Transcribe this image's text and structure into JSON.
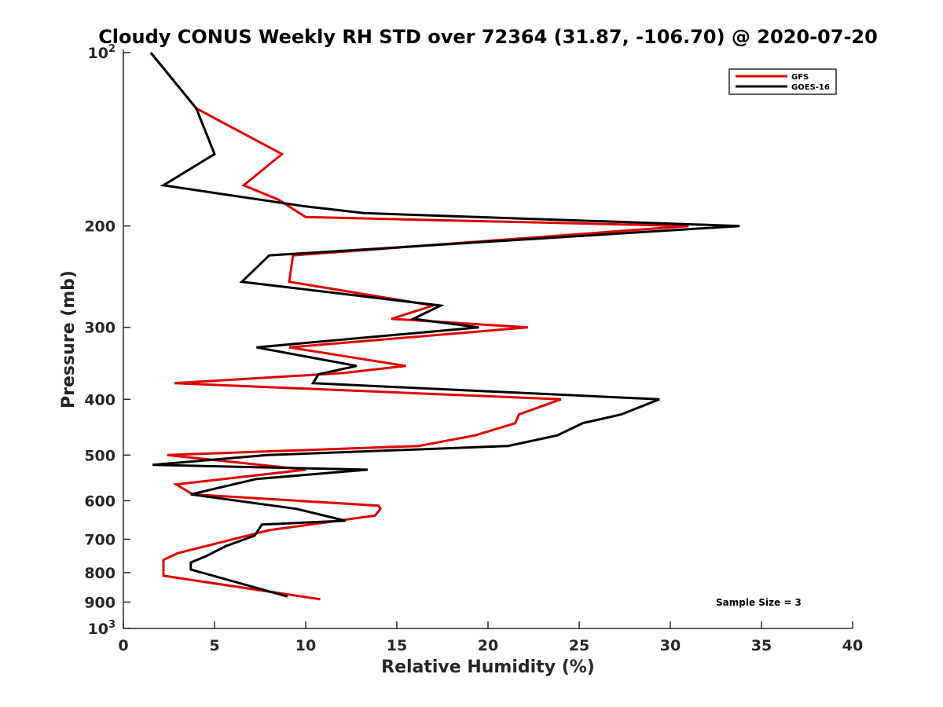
{
  "chart_data": {
    "type": "line",
    "title": "Cloudy CONUS Weekly RH STD over 72364 (31.87, -106.70) @ 2020-07-20",
    "xlabel": "Relative Humidity (%)",
    "ylabel": "Pressure (mb)",
    "xlim": [
      0,
      40
    ],
    "ylim": [
      100,
      1000
    ],
    "y_scale": "log",
    "y_reversed": true,
    "grid": false,
    "legend_position": "top-right",
    "x_ticks": [
      "0",
      "5",
      "10",
      "15",
      "20",
      "25",
      "30",
      "35",
      "40"
    ],
    "y_ticks": [
      {
        "value": 100,
        "base": "10",
        "exp": "2"
      },
      {
        "value": 200,
        "label": "200"
      },
      {
        "value": 300,
        "label": "300"
      },
      {
        "value": 400,
        "label": "400"
      },
      {
        "value": 500,
        "label": "500"
      },
      {
        "value": 600,
        "label": "600"
      },
      {
        "value": 700,
        "label": "700"
      },
      {
        "value": 800,
        "label": "800"
      },
      {
        "value": 900,
        "label": "900"
      },
      {
        "value": 1000,
        "base": "10",
        "exp": "3"
      }
    ],
    "series": [
      {
        "name": "GFS",
        "color": "#e00000",
        "points": [
          {
            "x": 1.5,
            "y": 100
          },
          {
            "x": 4.0,
            "y": 125
          },
          {
            "x": 8.7,
            "y": 150
          },
          {
            "x": 6.6,
            "y": 170
          },
          {
            "x": 8.5,
            "y": 180
          },
          {
            "x": 10.0,
            "y": 193
          },
          {
            "x": 31.0,
            "y": 200
          },
          {
            "x": 9.3,
            "y": 225
          },
          {
            "x": 9.1,
            "y": 250
          },
          {
            "x": 17.0,
            "y": 275
          },
          {
            "x": 14.7,
            "y": 290
          },
          {
            "x": 22.2,
            "y": 300
          },
          {
            "x": 9.1,
            "y": 325
          },
          {
            "x": 15.5,
            "y": 350
          },
          {
            "x": 12.1,
            "y": 360
          },
          {
            "x": 2.8,
            "y": 375
          },
          {
            "x": 24.0,
            "y": 400
          },
          {
            "x": 21.7,
            "y": 425
          },
          {
            "x": 21.5,
            "y": 440
          },
          {
            "x": 19.3,
            "y": 462
          },
          {
            "x": 16.2,
            "y": 482
          },
          {
            "x": 2.4,
            "y": 500
          },
          {
            "x": 10.0,
            "y": 530
          },
          {
            "x": 2.9,
            "y": 562
          },
          {
            "x": 3.8,
            "y": 585
          },
          {
            "x": 14.0,
            "y": 612
          },
          {
            "x": 14.1,
            "y": 620
          },
          {
            "x": 13.8,
            "y": 637
          },
          {
            "x": 8.0,
            "y": 675
          },
          {
            "x": 3.0,
            "y": 740
          },
          {
            "x": 2.2,
            "y": 760
          },
          {
            "x": 2.2,
            "y": 810
          },
          {
            "x": 10.8,
            "y": 890
          }
        ]
      },
      {
        "name": "GOES-16",
        "color": "#000000",
        "points": [
          {
            "x": 1.5,
            "y": 100
          },
          {
            "x": 4.0,
            "y": 125
          },
          {
            "x": 5.0,
            "y": 150
          },
          {
            "x": 2.2,
            "y": 170
          },
          {
            "x": 10.0,
            "y": 185
          },
          {
            "x": 13.2,
            "y": 190
          },
          {
            "x": 33.8,
            "y": 200
          },
          {
            "x": 8.0,
            "y": 225
          },
          {
            "x": 6.5,
            "y": 250
          },
          {
            "x": 17.4,
            "y": 275
          },
          {
            "x": 15.9,
            "y": 290
          },
          {
            "x": 19.5,
            "y": 300
          },
          {
            "x": 7.3,
            "y": 325
          },
          {
            "x": 12.8,
            "y": 350
          },
          {
            "x": 10.7,
            "y": 362
          },
          {
            "x": 10.4,
            "y": 375
          },
          {
            "x": 29.4,
            "y": 400
          },
          {
            "x": 27.3,
            "y": 425
          },
          {
            "x": 25.2,
            "y": 440
          },
          {
            "x": 23.8,
            "y": 462
          },
          {
            "x": 21.1,
            "y": 482
          },
          {
            "x": 7.9,
            "y": 500
          },
          {
            "x": 1.6,
            "y": 520
          },
          {
            "x": 13.4,
            "y": 530
          },
          {
            "x": 7.3,
            "y": 550
          },
          {
            "x": 3.7,
            "y": 585
          },
          {
            "x": 9.5,
            "y": 620
          },
          {
            "x": 12.2,
            "y": 650
          },
          {
            "x": 7.6,
            "y": 660
          },
          {
            "x": 7.2,
            "y": 690
          },
          {
            "x": 5.6,
            "y": 720
          },
          {
            "x": 4.5,
            "y": 750
          },
          {
            "x": 3.7,
            "y": 768
          },
          {
            "x": 3.7,
            "y": 790
          },
          {
            "x": 9.0,
            "y": 880
          }
        ]
      }
    ],
    "annotations": [
      "Sample Size = 3"
    ]
  }
}
